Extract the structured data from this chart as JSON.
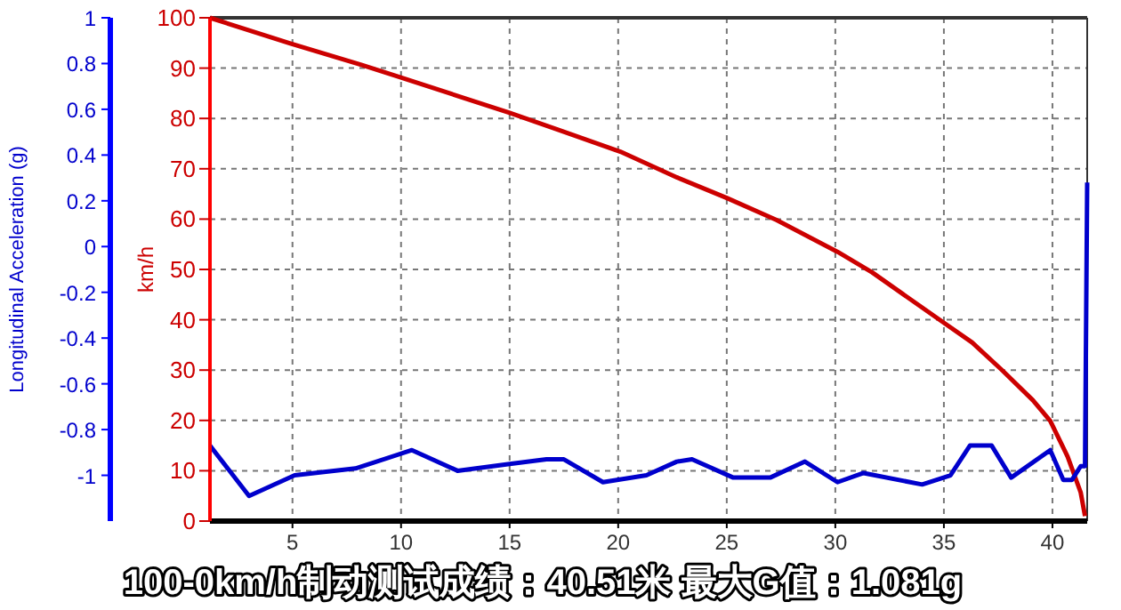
{
  "chart_data": {
    "type": "line",
    "xlim": [
      1.2,
      41.6
    ],
    "xticks": [
      5,
      10,
      15,
      20,
      25,
      30,
      35,
      40
    ],
    "ylim": [
      0,
      100
    ],
    "yticks": [
      0,
      10,
      20,
      30,
      40,
      50,
      60,
      70,
      80,
      90,
      100
    ],
    "y2lim": [
      -1.2,
      1
    ],
    "y2ticks": [
      1,
      0.8,
      0.6,
      0.4,
      0.2,
      0,
      -0.2,
      -0.4,
      -0.6,
      -0.8,
      -1
    ],
    "ylabel": "km/h",
    "y2label": "Longitudinal Acceleration (g)",
    "grid": true,
    "marker": "none",
    "line_style": "solid",
    "series": [
      {
        "color": "#cc0000",
        "x": [
          1.2,
          4.9,
          8.2,
          9.8,
          12.3,
          15.0,
          17.2,
          20.1,
          22.7,
          25.0,
          27.3,
          30.1,
          31.7,
          35.0,
          36.3,
          37.7,
          39.1,
          39.9,
          40.7,
          41.3,
          41.5
        ],
        "values": [
          100,
          94.9,
          90.6,
          88.4,
          84.9,
          81.1,
          77.8,
          73.4,
          68.3,
          64.2,
          59.8,
          53.5,
          49.4,
          39.4,
          35.5,
          29.9,
          24.0,
          19.9,
          12.8,
          5.7,
          1.0
        ]
      },
      {
        "color": "#0000cc",
        "axis": "y2",
        "x": [
          1.2,
          3.0,
          5.1,
          7.9,
          10.5,
          12.6,
          15.0,
          16.7,
          17.5,
          19.3,
          21.3,
          22.7,
          23.4,
          25.3,
          27.0,
          28.6,
          30.1,
          31.3,
          34.0,
          35.3,
          36.2,
          37.2,
          38.1,
          39.9,
          40.5,
          40.9,
          41.3,
          41.5,
          41.6
        ],
        "values": [
          -0.87,
          -1.09,
          -1.0,
          -0.97,
          -0.89,
          -0.98,
          -0.95,
          -0.93,
          -0.93,
          -1.03,
          -1.0,
          -0.94,
          -0.93,
          -1.01,
          -1.01,
          -0.94,
          -1.03,
          -0.99,
          -1.04,
          -1.0,
          -0.87,
          -0.87,
          -1.01,
          -0.89,
          -1.02,
          -1.02,
          -0.96,
          -0.96,
          0.28
        ]
      }
    ],
    "annotations": [
      "100-0km/h制动测试成绩：40.51米 最大G值：1.081g"
    ]
  }
}
